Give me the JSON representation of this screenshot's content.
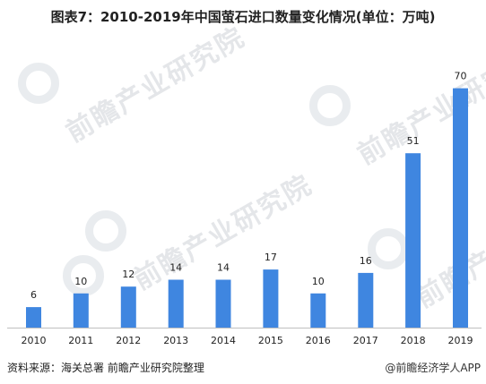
{
  "title": "图表7：2010-2019年中国萤石进口数量变化情况(单位：万吨)",
  "source": "资料来源：海关总署 前瞻产业研究院整理",
  "brand": "@前瞻经济学人APP",
  "watermark": "前瞻产业研究院",
  "colors": {
    "bar": "#3f86e0",
    "axis": "#bfbfbf",
    "text": "#222222"
  },
  "chart_data": {
    "type": "bar",
    "title": "图表7：2010-2019年中国萤石进口数量变化情况(单位：万吨)",
    "categories": [
      "2010",
      "2011",
      "2012",
      "2013",
      "2014",
      "2015",
      "2016",
      "2017",
      "2018",
      "2019"
    ],
    "values": [
      6,
      10,
      12,
      14,
      14,
      17,
      10,
      16,
      51,
      70
    ],
    "ylim": [
      0,
      72
    ],
    "grid": false,
    "data_labels": true
  }
}
